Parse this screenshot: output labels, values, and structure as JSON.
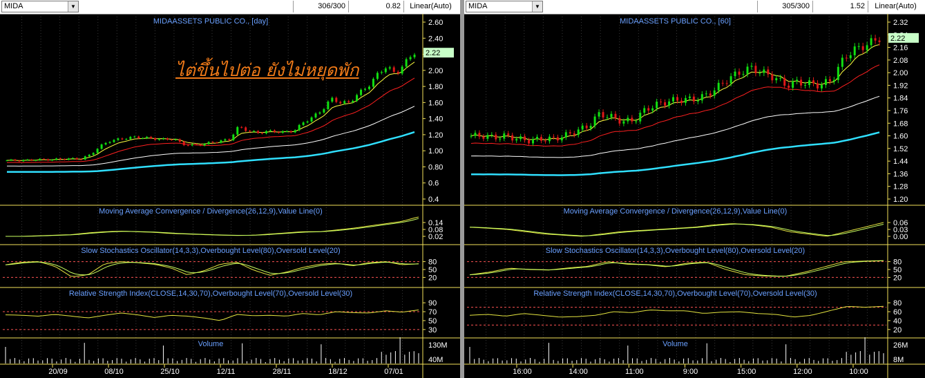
{
  "colors": {
    "grid": "#3a3a3a",
    "axis": "#f4e25a",
    "label": "#6aa0ff",
    "up": "#11e011",
    "down": "#e01818",
    "ma1": "#ffff40",
    "ma2": "#ff2020",
    "ma3": "#ffffff",
    "ma4": "#30e0ff",
    "osc1": "#e6e640",
    "osc2": "#c8ff60",
    "level": "#ff5555"
  },
  "annotation": "ไต่ขึ้นไปต่อ ยังไม่หยุดพัก",
  "panels": [
    {
      "symbol": "MIDA",
      "counter": "306/300",
      "last_value": "0.82",
      "scale": "Linear(Auto)",
      "title": "MIDAASSETS PUBLIC CO., [day]",
      "price_label": "2.22",
      "price_ticks": [
        "2.60",
        "2.40",
        "2.20",
        "2.00",
        "1.80",
        "1.60",
        "1.40",
        "1.20",
        "1.00",
        "0.80",
        "0.6",
        "0.4"
      ],
      "macd_title": "Moving Average Convergence / Divergence(26,12,9),Value Line(0)",
      "macd_ticks": [
        "0.14",
        "0.08",
        "0.02"
      ],
      "stoch_title": "Slow Stochastics Oscillator(14,3,3),Overbought Level(80),Oversold Level(20)",
      "stoch_ticks": [
        "80",
        "50",
        "20"
      ],
      "rsi_title": "Relative Strength Index(CLOSE,14,30,70),Overbought Level(70),Oversold Level(30)",
      "rsi_ticks": [
        "90",
        "70",
        "50",
        "30"
      ],
      "vol_title": "Volume",
      "vol_ticks": [
        "130M",
        "40M"
      ],
      "dates": [
        "20/09",
        "08/10",
        "25/10",
        "12/11",
        "28/11",
        "18/12",
        "07/01"
      ]
    },
    {
      "symbol": "MIDA",
      "counter": "305/300",
      "last_value": "1.52",
      "scale": "Linear(Auto)",
      "title": "MIDAASSETS PUBLIC CO., [60]",
      "price_label": "2.22",
      "price_ticks": [
        "2.32",
        "2.24",
        "2.16",
        "2.08",
        "2.00",
        "1.92",
        "1.84",
        "1.76",
        "1.68",
        "1.60",
        "1.52",
        "1.44",
        "1.36",
        "1.28",
        "1.20"
      ],
      "macd_title": "Moving Average Convergence / Divergence(26,12,9),Value Line(0)",
      "macd_ticks": [
        "0.06",
        "0.03",
        "0.00"
      ],
      "stoch_title": "Slow Stochastics Oscillator(14,3,3),Overbought Level(80),Oversold Level(20)",
      "stoch_ticks": [
        "80",
        "50",
        "20"
      ],
      "rsi_title": "Relative Strength Index(CLOSE,14,30,70),Overbought Level(70),Oversold Level(30)",
      "rsi_ticks": [
        "80",
        "60",
        "40",
        "20"
      ],
      "vol_title": "Volume",
      "vol_ticks": [
        "26M",
        "8M"
      ],
      "dates": [
        "16:00",
        "14:00",
        "11:00",
        "9:00",
        "15:00",
        "12:00",
        "10:00"
      ]
    }
  ],
  "chart_data": [
    {
      "type": "line",
      "title": "MIDAASSETS PUBLIC CO., [day]",
      "series": [
        {
          "name": "price",
          "values": [
            0.88,
            0.88,
            0.88,
            0.89,
            0.89,
            0.89,
            0.9,
            0.9,
            0.9,
            0.95,
            1.05,
            1.12,
            1.14,
            1.16,
            1.17,
            1.16,
            1.15,
            1.14,
            1.15,
            1.08,
            1.07,
            1.08,
            1.1,
            1.12,
            1.14,
            1.3,
            1.25,
            1.22,
            1.24,
            1.24,
            1.23,
            1.25,
            1.35,
            1.42,
            1.5,
            1.65,
            1.6,
            1.6,
            1.72,
            1.8,
            1.95,
            2.05,
            1.95,
            2.1,
            2.22
          ]
        },
        {
          "name": "MACD",
          "values": [
            0.02,
            0.02,
            0.025,
            0.03,
            0.035,
            0.05,
            0.06,
            0.065,
            0.06,
            0.055,
            0.045,
            0.04,
            0.035,
            0.03,
            0.028,
            0.03,
            0.04,
            0.05,
            0.06,
            0.06,
            0.075,
            0.09,
            0.11,
            0.13,
            0.15,
            0.19
          ]
        },
        {
          "name": "Stochastic",
          "values": [
            68,
            78,
            80,
            62,
            22,
            30,
            72,
            80,
            76,
            70,
            56,
            30,
            45,
            70,
            78,
            48,
            28,
            40,
            58,
            70,
            74,
            64,
            76,
            80,
            68,
            72
          ]
        },
        {
          "name": "RSI",
          "values": [
            63,
            62,
            60,
            64,
            60,
            56,
            62,
            67,
            63,
            57,
            62,
            60,
            56,
            50,
            64,
            61,
            62,
            60,
            66,
            63,
            70,
            68,
            67,
            72,
            69,
            74
          ]
        }
      ],
      "ylim": [
        0.4,
        2.6
      ]
    },
    {
      "type": "line",
      "title": "MIDAASSETS PUBLIC CO., [60]",
      "series": [
        {
          "name": "price",
          "values": [
            1.6,
            1.6,
            1.59,
            1.6,
            1.58,
            1.57,
            1.58,
            1.58,
            1.6,
            1.63,
            1.66,
            1.74,
            1.72,
            1.69,
            1.7,
            1.77,
            1.8,
            1.82,
            1.83,
            1.83,
            1.85,
            1.9,
            1.96,
            2.0,
            2.03,
            2.0,
            1.97,
            1.92,
            1.94,
            1.93,
            1.92,
            1.96,
            2.1,
            2.15,
            2.18,
            2.22
          ]
        },
        {
          "name": "MACD",
          "values": [
            0.04,
            0.035,
            0.03,
            0.02,
            0.01,
            0.005,
            0.0,
            0.01,
            0.02,
            0.025,
            0.03,
            0.035,
            0.04,
            0.05,
            0.055,
            0.05,
            0.04,
            0.02,
            0.01,
            0.0,
            0.02,
            0.04,
            0.06
          ]
        },
        {
          "name": "Stochastic",
          "values": [
            30,
            40,
            55,
            50,
            48,
            56,
            62,
            80,
            70,
            68,
            60,
            74,
            78,
            50,
            30,
            25,
            24,
            40,
            60,
            80,
            82,
            84
          ]
        },
        {
          "name": "RSI",
          "values": [
            52,
            54,
            50,
            56,
            52,
            48,
            49,
            52,
            60,
            58,
            64,
            62,
            62,
            56,
            59,
            60,
            56,
            54,
            48,
            52,
            62,
            72,
            70,
            72
          ]
        }
      ],
      "ylim": [
        1.2,
        2.32
      ]
    }
  ]
}
